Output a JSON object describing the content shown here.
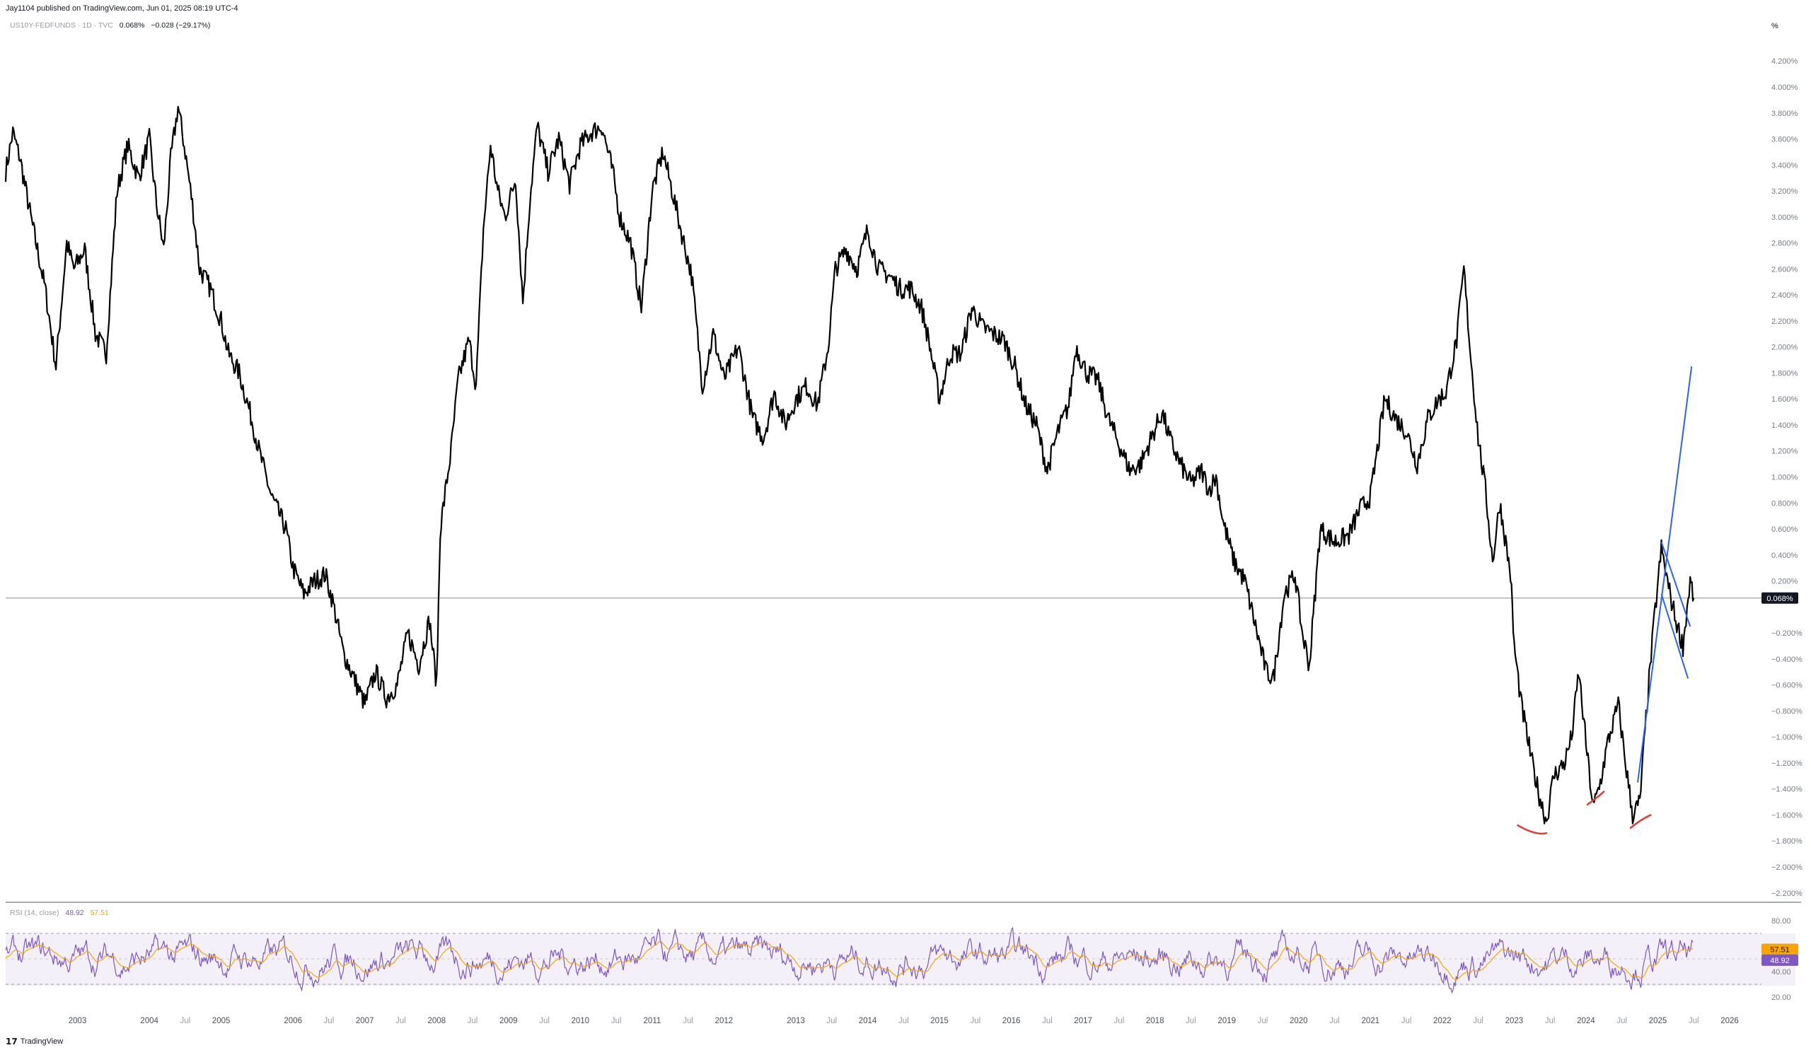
{
  "header": {
    "publish_text": "Jay1104 published on TradingView.com, Jun 01, 2025 08:19 UTC-4",
    "symbol": "US10Y-FEDFUNDS · 1D · TVC",
    "last_value": "0.068%",
    "change": "−0.028 (−29.17%)"
  },
  "price_axis": {
    "unit_label": "%",
    "current_value_badge": "0.068%"
  },
  "rsi": {
    "label": "RSI (14, close)",
    "rsi_value": "48.92",
    "ma_value": "57.51",
    "rsi_color": "#7e57c2",
    "ma_color": "#f7a600"
  },
  "footer": {
    "brand": "TradingView"
  },
  "colors": {
    "price_line": "#000000",
    "trend_line": "#2962ff",
    "bottom_marks": "#e53935",
    "badge_bg": "#131722"
  },
  "chart_data": [
    {
      "type": "line",
      "name": "price",
      "x_unit": "year",
      "ylim": [
        -2.3,
        4.3
      ],
      "yticks": [
        "4.200%",
        "4.000%",
        "3.800%",
        "3.600%",
        "3.400%",
        "3.200%",
        "3.000%",
        "2.800%",
        "2.600%",
        "2.400%",
        "2.200%",
        "2.000%",
        "1.800%",
        "1.600%",
        "1.400%",
        "1.200%",
        "1.000%",
        "0.800%",
        "0.600%",
        "0.400%",
        "0.200%",
        "0.068%",
        "−0.200%",
        "−0.400%",
        "−0.600%",
        "−0.800%",
        "−1.000%",
        "−1.200%",
        "−1.400%",
        "−1.600%",
        "−1.800%",
        "−2.000%",
        "−2.200%"
      ],
      "xticks": [
        {
          "label": "2003",
          "x": 2003.0
        },
        {
          "label": "2004",
          "x": 2004.0
        },
        {
          "label": "Jul",
          "x": 2004.5
        },
        {
          "label": "2005",
          "x": 2005.0
        },
        {
          "label": "2006",
          "x": 2006.0
        },
        {
          "label": "Jul",
          "x": 2006.5
        },
        {
          "label": "2007",
          "x": 2007.0
        },
        {
          "label": "Jul",
          "x": 2007.5
        },
        {
          "label": "2008",
          "x": 2008.0
        },
        {
          "label": "Jul",
          "x": 2008.5
        },
        {
          "label": "2009",
          "x": 2009.0
        },
        {
          "label": "Jul",
          "x": 2009.5
        },
        {
          "label": "2010",
          "x": 2010.0
        },
        {
          "label": "Jul",
          "x": 2010.5
        },
        {
          "label": "2011",
          "x": 2011.0
        },
        {
          "label": "Jul",
          "x": 2011.5
        },
        {
          "label": "2012",
          "x": 2012.0
        },
        {
          "label": "2013",
          "x": 2013.0
        },
        {
          "label": "Jul",
          "x": 2013.5
        },
        {
          "label": "2014",
          "x": 2014.0
        },
        {
          "label": "Jul",
          "x": 2014.5
        },
        {
          "label": "2015",
          "x": 2015.0
        },
        {
          "label": "Jul",
          "x": 2015.5
        },
        {
          "label": "2016",
          "x": 2016.0
        },
        {
          "label": "Jul",
          "x": 2016.5
        },
        {
          "label": "2017",
          "x": 2017.0
        },
        {
          "label": "Jul",
          "x": 2017.5
        },
        {
          "label": "2018",
          "x": 2018.0
        },
        {
          "label": "Jul",
          "x": 2018.5
        },
        {
          "label": "2019",
          "x": 2019.0
        },
        {
          "label": "Jul",
          "x": 2019.5
        },
        {
          "label": "2020",
          "x": 2020.0
        },
        {
          "label": "Jul",
          "x": 2020.5
        },
        {
          "label": "2021",
          "x": 2021.0
        },
        {
          "label": "Jul",
          "x": 2021.5
        },
        {
          "label": "2022",
          "x": 2022.0
        },
        {
          "label": "Jul",
          "x": 2022.5
        },
        {
          "label": "2023",
          "x": 2023.0
        },
        {
          "label": "Jul",
          "x": 2023.5
        },
        {
          "label": "2024",
          "x": 2024.0
        },
        {
          "label": "Jul",
          "x": 2024.5
        },
        {
          "label": "2025",
          "x": 2025.0
        },
        {
          "label": "Jul",
          "x": 2025.5
        },
        {
          "label": "2026",
          "x": 2026.0
        }
      ],
      "points": [
        [
          2002.0,
          3.35
        ],
        [
          2002.1,
          3.65
        ],
        [
          2002.2,
          3.45
        ],
        [
          2002.35,
          3.0
        ],
        [
          2002.55,
          2.45
        ],
        [
          2002.7,
          1.85
        ],
        [
          2002.85,
          2.8
        ],
        [
          2002.95,
          2.6
        ],
        [
          2003.1,
          2.75
        ],
        [
          2003.25,
          2.1
        ],
        [
          2003.4,
          1.95
        ],
        [
          2003.55,
          3.2
        ],
        [
          2003.7,
          3.55
        ],
        [
          2003.85,
          3.3
        ],
        [
          2004.0,
          3.6
        ],
        [
          2004.1,
          3.1
        ],
        [
          2004.2,
          2.75
        ],
        [
          2004.3,
          3.45
        ],
        [
          2004.4,
          3.85
        ],
        [
          2004.5,
          3.5
        ],
        [
          2004.6,
          3.1
        ],
        [
          2004.7,
          2.6
        ],
        [
          2004.85,
          2.45
        ],
        [
          2005.0,
          2.2
        ],
        [
          2005.1,
          1.95
        ],
        [
          2005.25,
          1.8
        ],
        [
          2005.4,
          1.5
        ],
        [
          2005.55,
          1.15
        ],
        [
          2005.7,
          0.85
        ],
        [
          2005.9,
          0.6
        ],
        [
          2006.0,
          0.3
        ],
        [
          2006.15,
          0.1
        ],
        [
          2006.3,
          0.2
        ],
        [
          2006.45,
          0.25
        ],
        [
          2006.55,
          0.05
        ],
        [
          2006.7,
          -0.35
        ],
        [
          2006.85,
          -0.55
        ],
        [
          2007.0,
          -0.75
        ],
        [
          2007.15,
          -0.5
        ],
        [
          2007.3,
          -0.7
        ],
        [
          2007.45,
          -0.6
        ],
        [
          2007.6,
          -0.2
        ],
        [
          2007.75,
          -0.45
        ],
        [
          2007.9,
          -0.1
        ],
        [
          2008.0,
          -0.6
        ],
        [
          2008.05,
          0.6
        ],
        [
          2008.2,
          1.2
        ],
        [
          2008.3,
          1.75
        ],
        [
          2008.45,
          2.05
        ],
        [
          2008.55,
          1.7
        ],
        [
          2008.65,
          2.9
        ],
        [
          2008.75,
          3.55
        ],
        [
          2008.85,
          3.2
        ],
        [
          2008.95,
          3.0
        ],
        [
          2009.1,
          3.3
        ],
        [
          2009.2,
          2.35
        ],
        [
          2009.3,
          3.15
        ],
        [
          2009.4,
          3.7
        ],
        [
          2009.55,
          3.35
        ],
        [
          2009.7,
          3.6
        ],
        [
          2009.85,
          3.25
        ],
        [
          2010.0,
          3.55
        ],
        [
          2010.15,
          3.65
        ],
        [
          2010.3,
          3.7
        ],
        [
          2010.45,
          3.35
        ],
        [
          2010.55,
          3.0
        ],
        [
          2010.7,
          2.8
        ],
        [
          2010.85,
          2.3
        ],
        [
          2011.0,
          3.2
        ],
        [
          2011.15,
          3.5
        ],
        [
          2011.3,
          3.15
        ],
        [
          2011.4,
          2.9
        ],
        [
          2011.55,
          2.55
        ],
        [
          2011.7,
          1.7
        ],
        [
          2011.85,
          2.1
        ],
        [
          2012.0,
          1.75
        ],
        [
          2012.2,
          2.0
        ],
        [
          2012.4,
          1.45
        ],
        [
          2012.55,
          1.3
        ],
        [
          2012.7,
          1.65
        ],
        [
          2012.85,
          1.4
        ],
        [
          2013.0,
          1.6
        ],
        [
          2013.15,
          1.7
        ],
        [
          2013.3,
          1.55
        ],
        [
          2013.45,
          2.0
        ],
        [
          2013.55,
          2.6
        ],
        [
          2013.7,
          2.75
        ],
        [
          2013.85,
          2.6
        ],
        [
          2014.0,
          2.9
        ],
        [
          2014.15,
          2.6
        ],
        [
          2014.3,
          2.55
        ],
        [
          2014.45,
          2.45
        ],
        [
          2014.6,
          2.45
        ],
        [
          2014.75,
          2.3
        ],
        [
          2014.85,
          2.05
        ],
        [
          2015.0,
          1.6
        ],
        [
          2015.15,
          1.95
        ],
        [
          2015.3,
          1.95
        ],
        [
          2015.45,
          2.3
        ],
        [
          2015.6,
          2.15
        ],
        [
          2015.75,
          2.1
        ],
        [
          2015.9,
          2.05
        ],
        [
          2016.05,
          1.85
        ],
        [
          2016.2,
          1.55
        ],
        [
          2016.35,
          1.4
        ],
        [
          2016.5,
          1.05
        ],
        [
          2016.65,
          1.35
        ],
        [
          2016.8,
          1.55
        ],
        [
          2016.9,
          2.0
        ],
        [
          2017.05,
          1.8
        ],
        [
          2017.2,
          1.75
        ],
        [
          2017.35,
          1.45
        ],
        [
          2017.5,
          1.25
        ],
        [
          2017.65,
          1.05
        ],
        [
          2017.8,
          1.1
        ],
        [
          2017.95,
          1.3
        ],
        [
          2018.1,
          1.5
        ],
        [
          2018.2,
          1.3
        ],
        [
          2018.35,
          1.1
        ],
        [
          2018.5,
          0.95
        ],
        [
          2018.65,
          1.05
        ],
        [
          2018.75,
          0.9
        ],
        [
          2018.85,
          1.0
        ],
        [
          2018.95,
          0.65
        ],
        [
          2019.1,
          0.35
        ],
        [
          2019.25,
          0.2
        ],
        [
          2019.4,
          -0.15
        ],
        [
          2019.55,
          -0.5
        ],
        [
          2019.65,
          -0.55
        ],
        [
          2019.8,
          0.1
        ],
        [
          2019.95,
          0.25
        ],
        [
          2020.05,
          -0.2
        ],
        [
          2020.15,
          -0.45
        ],
        [
          2020.3,
          0.6
        ],
        [
          2020.5,
          0.5
        ],
        [
          2020.7,
          0.55
        ],
        [
          2020.85,
          0.75
        ],
        [
          2021.0,
          0.85
        ],
        [
          2021.2,
          1.6
        ],
        [
          2021.35,
          1.45
        ],
        [
          2021.5,
          1.35
        ],
        [
          2021.65,
          1.1
        ],
        [
          2021.8,
          1.45
        ],
        [
          2021.95,
          1.6
        ],
        [
          2022.05,
          1.65
        ],
        [
          2022.2,
          2.05
        ],
        [
          2022.3,
          2.6
        ],
        [
          2022.4,
          1.9
        ],
        [
          2022.5,
          1.3
        ],
        [
          2022.6,
          0.9
        ],
        [
          2022.7,
          0.35
        ],
        [
          2022.8,
          0.8
        ],
        [
          2022.95,
          0.25
        ],
        [
          2023.0,
          -0.3
        ],
        [
          2023.1,
          -0.75
        ],
        [
          2023.25,
          -1.2
        ],
        [
          2023.35,
          -1.45
        ],
        [
          2023.45,
          -1.65
        ],
        [
          2023.55,
          -1.3
        ],
        [
          2023.7,
          -1.2
        ],
        [
          2023.8,
          -1.0
        ],
        [
          2023.9,
          -0.5
        ],
        [
          2024.0,
          -1.05
        ],
        [
          2024.1,
          -1.55
        ],
        [
          2024.2,
          -1.35
        ],
        [
          2024.3,
          -1.05
        ],
        [
          2024.45,
          -0.75
        ],
        [
          2024.55,
          -1.2
        ],
        [
          2024.65,
          -1.6
        ],
        [
          2024.75,
          -1.5
        ],
        [
          2024.85,
          -0.75
        ],
        [
          2024.95,
          -0.1
        ],
        [
          2025.05,
          0.45
        ],
        [
          2025.15,
          0.15
        ],
        [
          2025.25,
          -0.1
        ],
        [
          2025.35,
          -0.3
        ],
        [
          2025.45,
          0.2
        ],
        [
          2025.5,
          0.07
        ]
      ]
    },
    {
      "type": "line",
      "name": "RSI (14, close)",
      "ylim": [
        15,
        88
      ],
      "yticks": [
        "80.00",
        "40.00",
        "20.00"
      ],
      "bands": {
        "upper": 70,
        "lower": 30
      },
      "badges": [
        "57.51",
        "48.92"
      ]
    }
  ]
}
